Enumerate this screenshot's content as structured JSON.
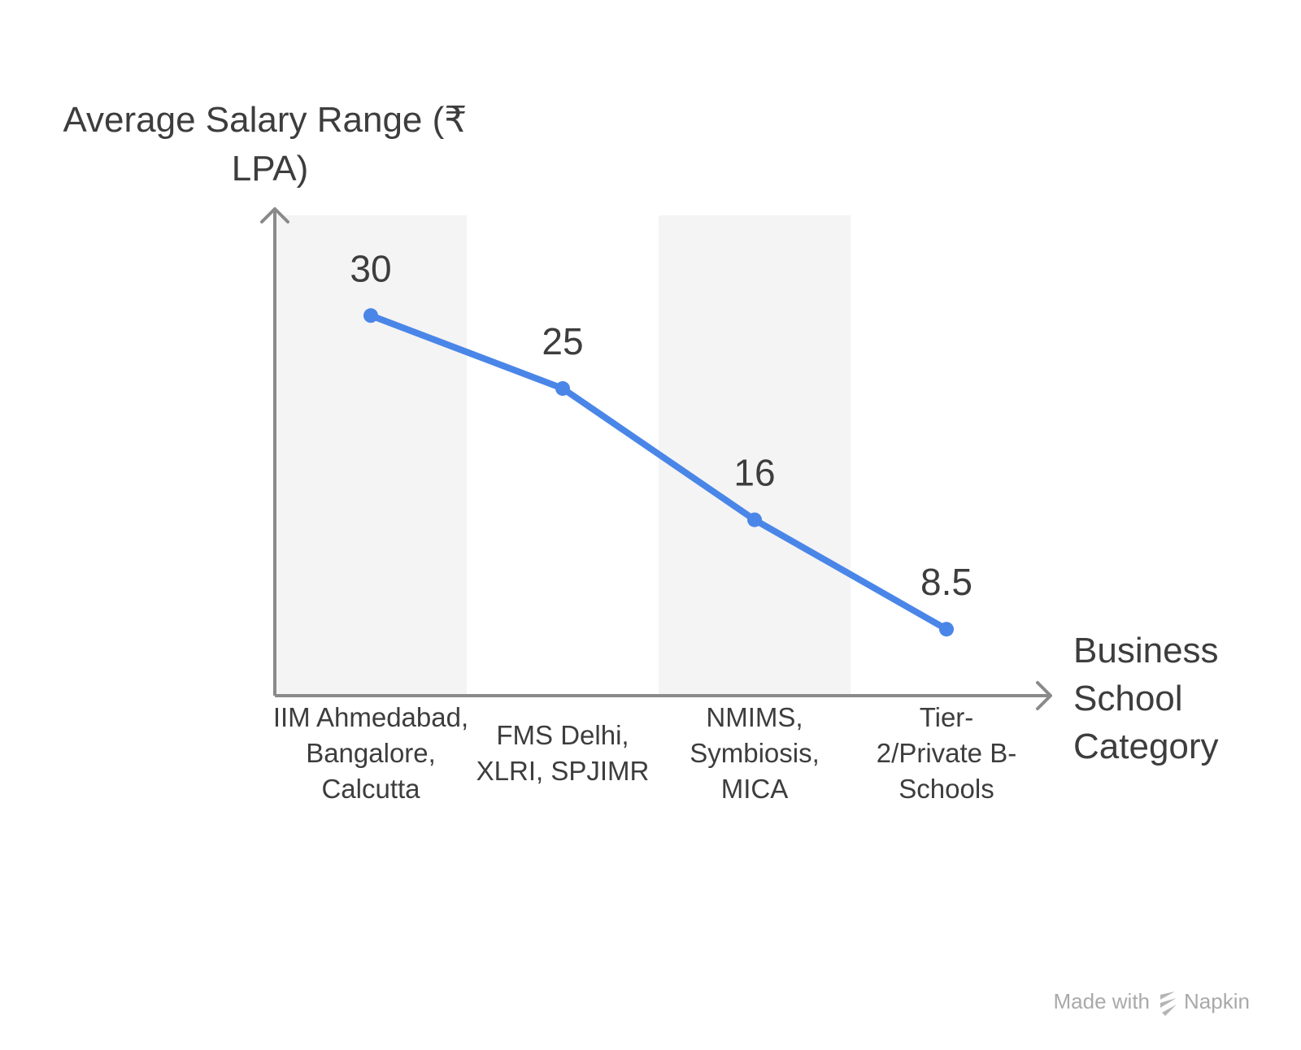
{
  "chart_data": {
    "type": "line",
    "ylabel_lines": [
      "Average Salary Range (₹",
      "LPA)"
    ],
    "xlabel_lines": [
      "Business",
      "School",
      "Category"
    ],
    "categories": [
      [
        "IIM Ahmedabad,",
        "Bangalore,",
        "Calcutta"
      ],
      [
        "FMS Delhi,",
        "XLRI, SPJIMR"
      ],
      [
        "NMIMS,",
        "Symbiosis,",
        "MICA"
      ],
      [
        "Tier-",
        "2/Private B-",
        "Schools"
      ]
    ],
    "values": [
      30,
      25,
      16,
      8.5
    ],
    "value_labels": [
      "30",
      "25",
      "16",
      "8.5"
    ],
    "colors": {
      "line": "#4a86e8",
      "axis": "#8a8a8a",
      "band": "#f4f4f4",
      "text": "#3d3d3d"
    }
  },
  "footer": {
    "credit": "Made with",
    "brand": "Napkin"
  }
}
